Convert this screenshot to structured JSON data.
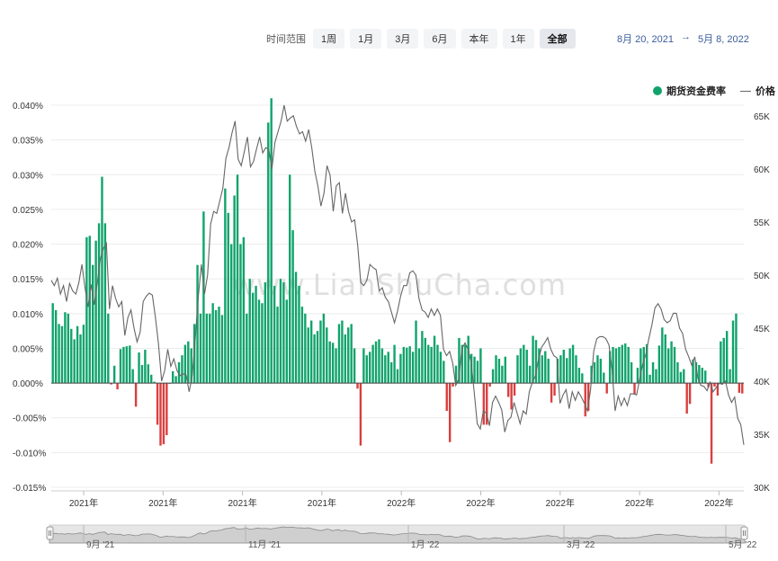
{
  "range": {
    "label": "时间范围",
    "buttons": [
      "1周",
      "1月",
      "3月",
      "6月",
      "本年",
      "1年",
      "全部"
    ],
    "active": "全部"
  },
  "date_range": {
    "start": "8月 20, 2021",
    "arrow": "→",
    "end": "5月 8, 2022"
  },
  "legend": {
    "funding": "期货资金费率",
    "price": "价格"
  },
  "watermark": "www.LianShuCha.com",
  "colors": {
    "positive": "#10a36b",
    "negative": "#d93f3f",
    "price": "#666666",
    "grid": "#ececec"
  },
  "navigator": {
    "labels": [
      "9月 '21",
      "11月 '21",
      "1月 '22",
      "3月 '22",
      "5月 '22"
    ]
  },
  "chart_data": {
    "type": "bar",
    "x_tick_labels": [
      "2021年",
      "2021年",
      "2021年",
      "2021年",
      "2022年",
      "2022年",
      "2022年",
      "2022年",
      "2022年"
    ],
    "y_left": {
      "ticks": [
        "0.040%",
        "0.035%",
        "0.030%",
        "0.025%",
        "0.020%",
        "0.015%",
        "0.010%",
        "0.005%",
        "0.000%",
        "-0.005%",
        "-0.010%",
        "-0.015%"
      ],
      "range": [
        -0.015,
        0.04
      ],
      "unit": "%"
    },
    "y_right": {
      "ticks": [
        "65K",
        "60K",
        "55K",
        "50K",
        "45K",
        "40K",
        "35K",
        "30K"
      ],
      "range": [
        30000,
        66000
      ]
    },
    "series": [
      {
        "name": "期货资金费率",
        "values": [
          0.0115,
          0.0105,
          0.0085,
          0.0082,
          0.0102,
          0.01,
          0.0078,
          0.0063,
          0.0082,
          0.007,
          0.0084,
          0.021,
          0.0212,
          0.017,
          0.0205,
          0.023,
          0.0297,
          0.023,
          0.01,
          -0.0002,
          0.0025,
          -0.0009,
          0.0049,
          0.0052,
          0.0053,
          0.0054,
          0.002,
          -0.0034,
          0.0044,
          0.0026,
          0.0048,
          0.0027,
          0.0012,
          0.0002,
          -0.006,
          -0.009,
          -0.0088,
          -0.0075,
          0.0,
          0.0017,
          0.001,
          0.003,
          0.004,
          0.0055,
          0.006,
          0.005,
          0.0085,
          0.017,
          0.01,
          0.0247,
          0.01,
          0.01,
          0.0115,
          0.0105,
          0.011,
          0.0098,
          0.028,
          0.0245,
          0.02,
          0.027,
          0.03,
          0.02,
          0.021,
          0.01,
          0.015,
          0.013,
          0.014,
          0.012,
          0.0115,
          0.0145,
          0.0375,
          0.041,
          0.014,
          0.011,
          0.015,
          0.0145,
          0.012,
          0.03,
          0.022,
          0.016,
          0.014,
          0.011,
          0.01,
          0.008,
          0.009,
          0.007,
          0.0075,
          0.009,
          0.01,
          0.008,
          0.006,
          0.0058,
          0.005,
          0.0085,
          0.009,
          0.007,
          0.008,
          0.0085,
          0.005,
          -0.0008,
          -0.009,
          0.005,
          0.004,
          0.0045,
          0.0055,
          0.006,
          0.0063,
          0.005,
          0.004,
          0.0045,
          0.003,
          0.0055,
          0.002,
          0.0042,
          0.0052,
          0.0051,
          0.0053,
          0.0045,
          0.009,
          0.005,
          0.0075,
          0.0065,
          0.0055,
          0.0052,
          0.0068,
          0.0055,
          0.0045,
          0.0032,
          -0.004,
          -0.0085,
          -0.0005,
          0.0025,
          0.0065,
          0.0055,
          0.0055,
          0.0068,
          0.0042,
          0.0038,
          0.0032,
          0.005,
          -0.006,
          -0.006,
          -0.0005,
          0.002,
          0.004,
          0.0035,
          0.0025,
          0.0038,
          -0.002,
          -0.0038,
          -0.0018,
          0.004,
          0.005,
          0.0055,
          0.0048,
          0.0025,
          0.0068,
          0.0062,
          0.005,
          0.004,
          0.0046,
          0.0035,
          -0.0028,
          -0.0018,
          0.0035,
          0.004,
          0.0048,
          0.0036,
          0.005,
          0.0055,
          0.004,
          0.0022,
          0.0014,
          -0.0048,
          -0.004,
          0.0025,
          0.003,
          0.004,
          0.0035,
          0.0015,
          -0.0015,
          0.0046,
          0.0052,
          0.005,
          0.0052,
          0.0055,
          0.0057,
          0.0052,
          0.003,
          -0.0016,
          0.0022,
          0.005,
          0.0052,
          0.0056,
          0.0012,
          0.003,
          0.002,
          0.0054,
          0.008,
          0.007,
          0.005,
          0.006,
          0.0052,
          0.003,
          0.0016,
          0.002,
          -0.0044,
          -0.003,
          0.0034,
          0.003,
          0.0026,
          0.0022,
          0.0018,
          -0.0006,
          -0.0116,
          -0.0005,
          -0.0018,
          0.006,
          0.0065,
          0.0075,
          0.002,
          0.009,
          0.01,
          -0.0014,
          -0.0015
        ]
      },
      {
        "name": "价格",
        "values": [
          49500,
          49000,
          49700,
          48200,
          49000,
          47500,
          49200,
          48500,
          48200,
          49300,
          51000,
          48800,
          47000,
          49100,
          47200,
          49200,
          51500,
          52500,
          53000,
          46800,
          49000,
          47800,
          47000,
          47500,
          44300,
          46000,
          46700,
          45000,
          43700,
          44600,
          47500,
          48000,
          48300,
          48100,
          46000,
          43500,
          40000,
          41000,
          43000,
          41400,
          42100,
          41000,
          40500,
          40700,
          40600,
          39000,
          40500,
          44000,
          48000,
          51000,
          48200,
          50000,
          54800,
          56000,
          55800,
          57000,
          58200,
          61000,
          62000,
          63400,
          64500,
          60900,
          60300,
          61600,
          63000,
          60200,
          60700,
          61900,
          63000,
          61500,
          62000,
          61800,
          60000,
          62500,
          63500,
          64500,
          66000,
          64500,
          64800,
          65000,
          64000,
          63300,
          63500,
          62600,
          63700,
          62000,
          59800,
          58400,
          56500,
          57700,
          60300,
          59400,
          56000,
          58400,
          58700,
          55800,
          57700,
          56000,
          55000,
          55200,
          52800,
          49300,
          49000,
          49500,
          51000,
          50700,
          50500,
          48500,
          48800,
          47900,
          47500,
          46500,
          45500,
          46600,
          48000,
          49000,
          49000,
          50200,
          50400,
          50000,
          47800,
          46700,
          46500,
          46000,
          46800,
          46200,
          46800,
          46200,
          43000,
          42400,
          42800,
          41700,
          39600,
          40200,
          43000,
          43600,
          43000,
          41800,
          39000,
          36000,
          35500,
          37200,
          37000,
          35800,
          38000,
          38600,
          38000,
          37300,
          35200,
          36300,
          36600,
          38000,
          37000,
          36000,
          37200,
          36900,
          39000,
          39900,
          40500,
          42000,
          43200,
          43600,
          44100,
          43000,
          42400,
          42200,
          37900,
          38700,
          39200,
          37400,
          39000,
          38200,
          39000,
          38500,
          37900,
          37200,
          39200,
          42800,
          44000,
          44200,
          44200,
          44000,
          43400,
          41100,
          37200,
          38600,
          37700,
          38400,
          37700,
          38800,
          38800,
          38700,
          40200,
          41600,
          42500,
          44000,
          45300,
          46900,
          47300,
          46800,
          45800,
          45500,
          45700,
          46400,
          46400,
          45000,
          44500,
          43000,
          42300,
          41500,
          42300,
          40300,
          39600,
          39500,
          39100,
          39900,
          39000,
          39400,
          39800,
          39700,
          40000,
          38700,
          38000,
          38500,
          36500,
          35900,
          34000
        ]
      }
    ]
  }
}
